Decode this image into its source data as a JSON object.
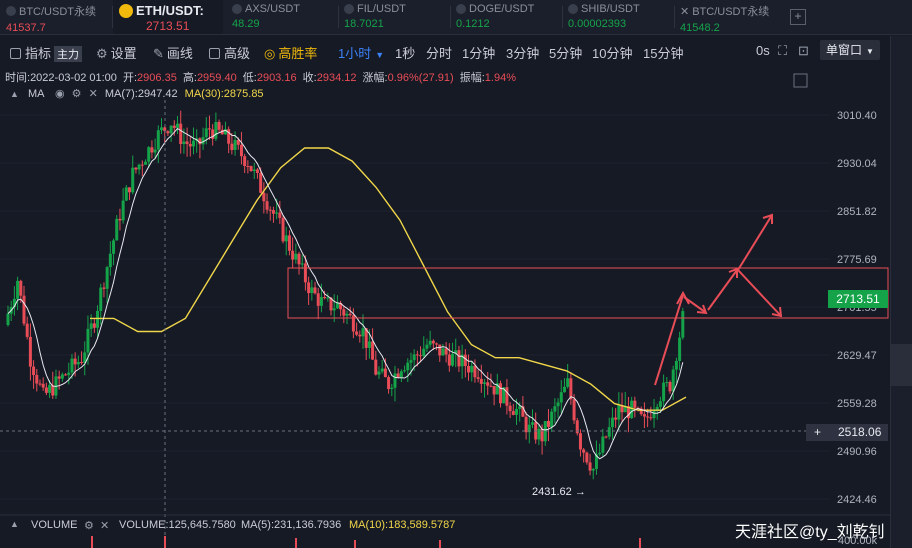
{
  "tabs": [
    {
      "symbol": "BTC/USDT永续",
      "price": "41537.7",
      "price_color": "#e84d57",
      "active": false
    },
    {
      "symbol": "ETH/USDT:",
      "price": "2713.51",
      "price_color": "#e84d57",
      "active": true
    },
    {
      "symbol": "AXS/USDT",
      "price": "48.29",
      "price_color": "#15a34a",
      "active": false
    },
    {
      "symbol": "FIL/USDT",
      "price": "18.7021",
      "price_color": "#15a34a",
      "active": false
    },
    {
      "symbol": "DOGE/USDT",
      "price": "0.1212",
      "price_color": "#15a34a",
      "active": false
    },
    {
      "symbol": "SHIB/USDT",
      "price": "0.00002393",
      "price_color": "#15a34a",
      "active": false
    },
    {
      "symbol": "BTC/USDT永续",
      "price": "41548.2",
      "price_color": "#15a34a",
      "active": false
    }
  ],
  "toolbar": {
    "indicators": "指标",
    "indicators_badge": "主力",
    "settings": "设置",
    "draw": "画线",
    "advanced": "高级",
    "win_rate": "高胜率",
    "interval": "1小时",
    "intervals": [
      "1秒",
      "分时",
      "1分钟",
      "3分钟",
      "5分钟",
      "10分钟",
      "15分钟"
    ],
    "countdown": "0s",
    "window": "单窗口"
  },
  "info": {
    "time_label": "时间:",
    "time": "2022-03-02 01:00",
    "open_label": "开:",
    "open": "2906.35",
    "high_label": "高:",
    "high": "2959.40",
    "low_label": "低:",
    "low": "2903.16",
    "close_label": "收:",
    "close": "2934.12",
    "change_label": "涨幅:",
    "change": "0.96%(27.91)",
    "amplitude_label": "振幅:",
    "amplitude": "1.94%"
  },
  "ma": {
    "name": "MA",
    "ma7_label": "MA(7):2947.42",
    "ma30_label": "MA(30):2875.85"
  },
  "volume": {
    "name": "VOLUME",
    "volume_label": "VOLUME:125,645.7580",
    "ma5_label": "MA(5):231,136.7936",
    "ma10_label": "MA(10):183,589.5787",
    "scale_label": "400.00k"
  },
  "price_axis": [
    "3010.40",
    "2930.04",
    "2851.82",
    "2775.69",
    "2701.55",
    "2629.47",
    "2559.28",
    "2490.96",
    "2424.46"
  ],
  "current_price": "2713.51",
  "crosshair_price": "2518.06",
  "low_marker": "2431.62",
  "watermark": "天涯社区@ty_刘乾钊",
  "colors": {
    "up": "#15a34a",
    "down": "#e84d57",
    "ma7": "#ffffff",
    "ma30": "#f0d64a",
    "annotation": "#e84d57"
  },
  "chart_data": {
    "type": "candlestick",
    "interval": "1h",
    "close_approx": [
      2690,
      2760,
      2640,
      2580,
      2600,
      2620,
      2640,
      2700,
      2780,
      2860,
      2920,
      2950,
      2980,
      3000,
      2970,
      2960,
      2990,
      2980,
      2960,
      2940,
      2900,
      2860,
      2820,
      2780,
      2740,
      2720,
      2720,
      2700,
      2680,
      2620,
      2600,
      2630,
      2640,
      2660,
      2650,
      2640,
      2630,
      2620,
      2600,
      2580,
      2560,
      2530,
      2520,
      2560,
      2600,
      2510,
      2470,
      2520,
      2560,
      2560,
      2540,
      2580,
      2600,
      2700
    ],
    "ma30_approx": [
      2700,
      2700,
      2680,
      2680,
      2700,
      2760,
      2820,
      2880,
      2930,
      2960,
      2960,
      2940,
      2900,
      2850,
      2780,
      2710,
      2660,
      2640,
      2640,
      2630,
      2620,
      2600,
      2570,
      2560,
      2560,
      2580
    ]
  }
}
